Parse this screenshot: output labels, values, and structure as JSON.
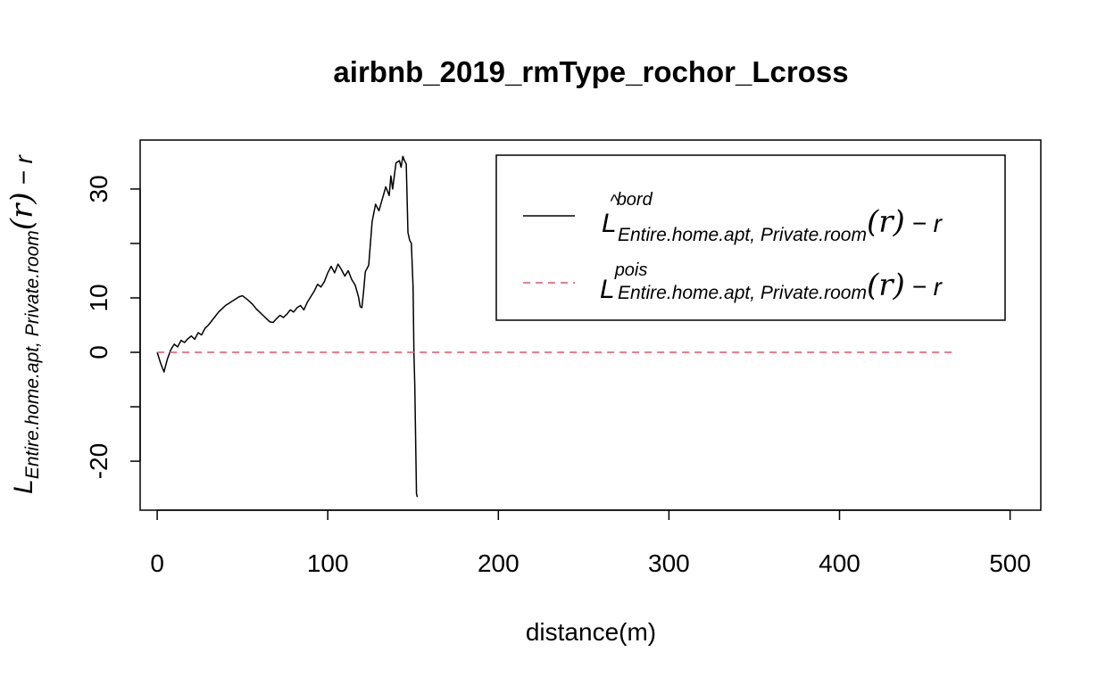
{
  "chart_data": {
    "type": "line",
    "title": "airbnb_2019_rmType_rochor_Lcross",
    "xlabel": "distance(m)",
    "ylabel": {
      "main": "L",
      "sub": "Entire.home.apt, Private.room",
      "arg": "(r)",
      "rest": " − r"
    },
    "xlim": [
      -10,
      518
    ],
    "ylim": [
      -29,
      39
    ],
    "x_ticks": [
      0,
      100,
      200,
      300,
      400,
      500
    ],
    "y_ticks": [
      -20,
      -10,
      0,
      10,
      20,
      30
    ],
    "y_tick_labels": [
      "-20",
      "",
      "0",
      "10",
      "",
      "30"
    ],
    "grid": false,
    "legend_position": "top-right",
    "series": [
      {
        "color": "#000000",
        "dash": "solid",
        "legend": {
          "main": "L",
          "hat": "^",
          "sup": "bord",
          "sub": "Entire.home.apt, Private.room",
          "arg": "(r)",
          "rest": " − r"
        },
        "x": [
          0,
          2,
          4,
          6,
          8,
          10,
          12,
          14,
          16,
          18,
          20,
          22,
          24,
          26,
          28,
          30,
          32,
          34,
          36,
          38,
          40,
          42,
          44,
          46,
          48,
          50,
          52,
          54,
          56,
          58,
          60,
          62,
          64,
          66,
          68,
          70,
          72,
          74,
          76,
          78,
          80,
          82,
          84,
          86,
          88,
          90,
          92,
          94,
          96,
          98,
          100,
          102,
          104,
          106,
          108,
          110,
          112,
          114,
          116,
          118,
          119,
          120,
          121,
          122,
          124,
          126,
          128,
          130,
          132,
          134,
          136,
          137,
          138,
          140,
          142,
          143,
          144,
          145,
          146,
          147,
          148,
          149,
          150,
          150.5,
          151,
          151.5,
          152,
          152.5
        ],
        "y": [
          0,
          -2,
          -3.6,
          -1.2,
          0.5,
          1.5,
          1.0,
          2.2,
          1.8,
          2.5,
          3.0,
          2.4,
          3.6,
          3.2,
          4.4,
          5.0,
          5.8,
          6.6,
          7.4,
          8.0,
          8.6,
          9.0,
          9.4,
          9.8,
          10.2,
          10.4,
          9.9,
          9.4,
          8.8,
          8.0,
          7.4,
          6.8,
          6.2,
          5.6,
          5.5,
          6.2,
          6.8,
          6.4,
          7.0,
          7.8,
          7.4,
          8.2,
          8.6,
          7.8,
          9.2,
          10.2,
          11.2,
          12.5,
          12.0,
          13.0,
          14.6,
          15.8,
          14.6,
          16.2,
          15.2,
          14.0,
          15.0,
          13.4,
          12.4,
          10.2,
          8.4,
          8.2,
          11.2,
          14.8,
          16.0,
          24.0,
          27.2,
          26.0,
          28.2,
          30.4,
          28.8,
          32.4,
          30.0,
          34.8,
          35.2,
          34.0,
          36.0,
          35.2,
          34.6,
          22.0,
          20.6,
          20.0,
          12.0,
          0.0,
          -6.0,
          -16.0,
          -26.0,
          -26.6
        ]
      },
      {
        "color": "#df536b",
        "dash": "dashed",
        "legend": {
          "main": "L",
          "hat": "",
          "sup": "pois",
          "sub": "Entire.home.apt, Private.room",
          "arg": "(r)",
          "rest": " − r"
        },
        "x": [
          0,
          468
        ],
        "y": [
          0,
          0
        ]
      }
    ]
  }
}
